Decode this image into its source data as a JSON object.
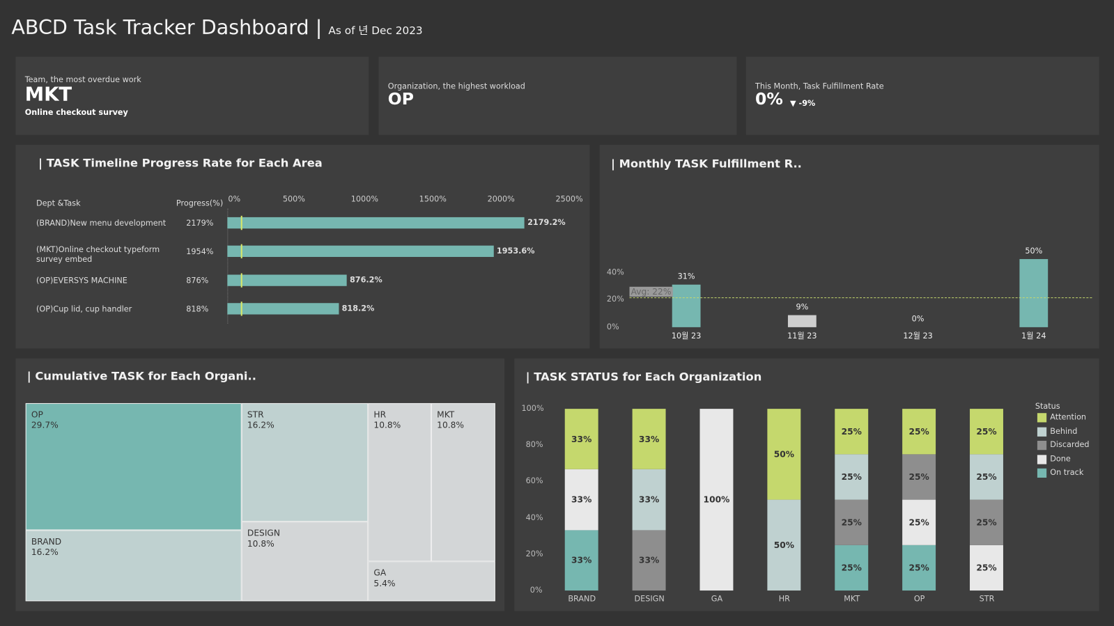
{
  "header": {
    "title": "ABCD Task Tracker Dashboard",
    "separator": "|",
    "subtitle": "As of 년 Dec 2023"
  },
  "kpis": [
    {
      "label": "Team, the most overdue work",
      "value": "MKT",
      "sub": "Online checkout survey"
    },
    {
      "label": "Organization, the highest workload",
      "value": "OP"
    },
    {
      "label": "This Month, Task Fulfillment Rate",
      "value": "0%",
      "delta": "▼ -9%"
    }
  ],
  "chart_data": [
    {
      "type": "bar",
      "title": "| TASK Timeline Progress Rate for Each Area",
      "col_headers": [
        "Dept &Task",
        "Progress(%)"
      ],
      "xlim": [
        0,
        2500
      ],
      "ticks": [
        "0%",
        "500%",
        "1000%",
        "1500%",
        "2000%",
        "2500%"
      ],
      "tick_values": [
        0,
        500,
        1000,
        1500,
        2000,
        2500
      ],
      "reference_line": 100,
      "categories": [
        "(BRAND)New menu development",
        "(MKT)Online checkout typeform survey embed",
        "(OP)EVERSYS MACHINE",
        "(OP)Cup lid, cup handler"
      ],
      "progress_labels": [
        "2179%",
        "1954%",
        "876%",
        "818%"
      ],
      "values": [
        2179.2,
        1953.6,
        876.2,
        818.2
      ],
      "value_labels": [
        "2179.2%",
        "1953.6%",
        "876.2%",
        "818.2%"
      ],
      "color": "#76b7b0"
    },
    {
      "type": "bar",
      "title": "| Monthly TASK Fulfillment R..",
      "ylim": [
        0,
        60
      ],
      "ticks": [
        "0%",
        "20%",
        "40%"
      ],
      "tick_values": [
        0,
        20,
        40
      ],
      "categories": [
        "10월 23",
        "11월 23",
        "12월 23",
        "1월 24"
      ],
      "values": [
        31,
        9,
        0,
        50
      ],
      "value_labels": [
        "31%",
        "9%",
        "0%",
        "50%"
      ],
      "colors": [
        "#76b7b0",
        "#cfcfcf",
        "#cfcfcf",
        "#76b7b0"
      ],
      "average": 22,
      "average_label": "Avg: 22%"
    },
    {
      "type": "treemap",
      "title": "| Cumulative TASK for Each Organi..",
      "items": [
        {
          "name": "OP",
          "value": "29.7%"
        },
        {
          "name": "BRAND",
          "value": "16.2%"
        },
        {
          "name": "STR",
          "value": "16.2%"
        },
        {
          "name": "DESIGN",
          "value": "10.8%"
        },
        {
          "name": "HR",
          "value": "10.8%"
        },
        {
          "name": "MKT",
          "value": "10.8%"
        },
        {
          "name": "GA",
          "value": "5.4%"
        }
      ]
    },
    {
      "type": "bar",
      "stacked": true,
      "title": "| TASK STATUS for Each Organization",
      "ylim": [
        0,
        100
      ],
      "ticks": [
        "0%",
        "20%",
        "40%",
        "60%",
        "80%",
        "100%"
      ],
      "categories": [
        "BRAND",
        "DESIGN",
        "GA",
        "HR",
        "MKT",
        "OP",
        "STR"
      ],
      "legend_title": "Status",
      "legend_position": "right",
      "series": [
        {
          "name": "Attention",
          "color": "#c5d86d",
          "values": [
            33,
            33,
            0,
            50,
            25,
            25,
            25
          ]
        },
        {
          "name": "Behind",
          "color": "#bfd1d0",
          "values": [
            0,
            33,
            0,
            50,
            25,
            0,
            25
          ]
        },
        {
          "name": "Discarded",
          "color": "#8e8e8e",
          "values": [
            0,
            33,
            0,
            0,
            25,
            25,
            25
          ]
        },
        {
          "name": "Done",
          "color": "#e8e8e8",
          "values": [
            33,
            0,
            100,
            0,
            0,
            25,
            25
          ]
        },
        {
          "name": "On track",
          "color": "#76b7b0",
          "values": [
            33,
            0,
            0,
            0,
            25,
            25,
            0
          ]
        }
      ]
    }
  ]
}
